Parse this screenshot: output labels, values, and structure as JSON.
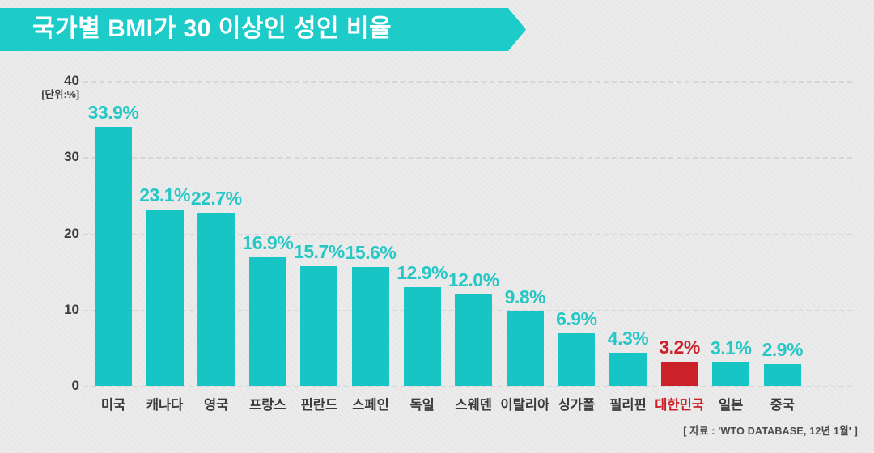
{
  "header": {
    "title": "국가별 BMI가 30 이상인 성인 비율"
  },
  "chart_data": {
    "type": "bar",
    "title": "국가별 BMI가 30 이상인 성인 비율",
    "unit_label": "[단위:%]",
    "categories": [
      "미국",
      "캐나다",
      "영국",
      "프랑스",
      "핀란드",
      "스페인",
      "독일",
      "스웨덴",
      "이탈리아",
      "싱가폴",
      "필리핀",
      "대한민국",
      "일본",
      "중국"
    ],
    "values": [
      33.9,
      23.1,
      22.7,
      16.9,
      15.7,
      15.6,
      12.9,
      12.0,
      9.8,
      6.9,
      4.3,
      3.2,
      3.1,
      2.9
    ],
    "value_labels": [
      "33.9%",
      "23.1%",
      "22.7%",
      "16.9%",
      "15.7%",
      "15.6%",
      "12.9%",
      "12.0%",
      "9.8%",
      "6.9%",
      "4.3%",
      "3.2%",
      "3.1%",
      "2.9%"
    ],
    "highlight_category": "대한민국",
    "highlight_index": 11,
    "y_ticks": [
      0,
      10,
      20,
      30,
      40
    ],
    "ylim": [
      0,
      40
    ],
    "xlabel": "",
    "ylabel": "",
    "grid": "horizontal-dashed",
    "legend": "none",
    "colors": {
      "bar": "#16c5c4",
      "highlight_bar": "#cb2229",
      "value_label": "#26c7c5",
      "highlight_label": "#cb2229",
      "banner": "#1dcbc9",
      "background": "#ebebec"
    }
  },
  "source_note": "[ 자료 : 'WTO DATABASE, 12년 1월' ]"
}
